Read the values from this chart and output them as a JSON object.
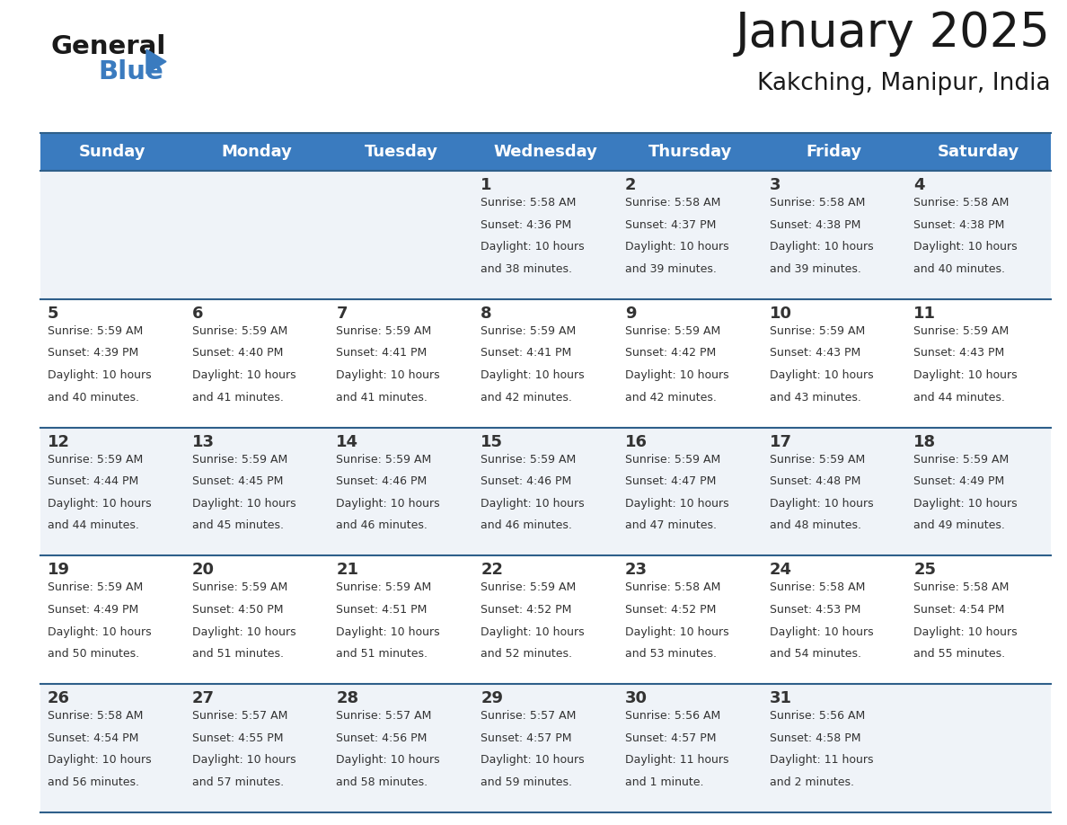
{
  "title": "January 2025",
  "subtitle": "Kakching, Manipur, India",
  "header_bg_color": "#3a7bbf",
  "header_text_color": "#ffffff",
  "day_names": [
    "Sunday",
    "Monday",
    "Tuesday",
    "Wednesday",
    "Thursday",
    "Friday",
    "Saturday"
  ],
  "row_bg_even": "#eff3f8",
  "row_bg_odd": "#ffffff",
  "separator_color": "#2e5f8a",
  "background_color": "#ffffff",
  "text_color": "#333333",
  "days": [
    {
      "day": 1,
      "col": 3,
      "row": 0,
      "sunrise": "5:58 AM",
      "sunset": "4:36 PM",
      "daylight_line1": "Daylight: 10 hours",
      "daylight_line2": "and 38 minutes."
    },
    {
      "day": 2,
      "col": 4,
      "row": 0,
      "sunrise": "5:58 AM",
      "sunset": "4:37 PM",
      "daylight_line1": "Daylight: 10 hours",
      "daylight_line2": "and 39 minutes."
    },
    {
      "day": 3,
      "col": 5,
      "row": 0,
      "sunrise": "5:58 AM",
      "sunset": "4:38 PM",
      "daylight_line1": "Daylight: 10 hours",
      "daylight_line2": "and 39 minutes."
    },
    {
      "day": 4,
      "col": 6,
      "row": 0,
      "sunrise": "5:58 AM",
      "sunset": "4:38 PM",
      "daylight_line1": "Daylight: 10 hours",
      "daylight_line2": "and 40 minutes."
    },
    {
      "day": 5,
      "col": 0,
      "row": 1,
      "sunrise": "5:59 AM",
      "sunset": "4:39 PM",
      "daylight_line1": "Daylight: 10 hours",
      "daylight_line2": "and 40 minutes."
    },
    {
      "day": 6,
      "col": 1,
      "row": 1,
      "sunrise": "5:59 AM",
      "sunset": "4:40 PM",
      "daylight_line1": "Daylight: 10 hours",
      "daylight_line2": "and 41 minutes."
    },
    {
      "day": 7,
      "col": 2,
      "row": 1,
      "sunrise": "5:59 AM",
      "sunset": "4:41 PM",
      "daylight_line1": "Daylight: 10 hours",
      "daylight_line2": "and 41 minutes."
    },
    {
      "day": 8,
      "col": 3,
      "row": 1,
      "sunrise": "5:59 AM",
      "sunset": "4:41 PM",
      "daylight_line1": "Daylight: 10 hours",
      "daylight_line2": "and 42 minutes."
    },
    {
      "day": 9,
      "col": 4,
      "row": 1,
      "sunrise": "5:59 AM",
      "sunset": "4:42 PM",
      "daylight_line1": "Daylight: 10 hours",
      "daylight_line2": "and 42 minutes."
    },
    {
      "day": 10,
      "col": 5,
      "row": 1,
      "sunrise": "5:59 AM",
      "sunset": "4:43 PM",
      "daylight_line1": "Daylight: 10 hours",
      "daylight_line2": "and 43 minutes."
    },
    {
      "day": 11,
      "col": 6,
      "row": 1,
      "sunrise": "5:59 AM",
      "sunset": "4:43 PM",
      "daylight_line1": "Daylight: 10 hours",
      "daylight_line2": "and 44 minutes."
    },
    {
      "day": 12,
      "col": 0,
      "row": 2,
      "sunrise": "5:59 AM",
      "sunset": "4:44 PM",
      "daylight_line1": "Daylight: 10 hours",
      "daylight_line2": "and 44 minutes."
    },
    {
      "day": 13,
      "col": 1,
      "row": 2,
      "sunrise": "5:59 AM",
      "sunset": "4:45 PM",
      "daylight_line1": "Daylight: 10 hours",
      "daylight_line2": "and 45 minutes."
    },
    {
      "day": 14,
      "col": 2,
      "row": 2,
      "sunrise": "5:59 AM",
      "sunset": "4:46 PM",
      "daylight_line1": "Daylight: 10 hours",
      "daylight_line2": "and 46 minutes."
    },
    {
      "day": 15,
      "col": 3,
      "row": 2,
      "sunrise": "5:59 AM",
      "sunset": "4:46 PM",
      "daylight_line1": "Daylight: 10 hours",
      "daylight_line2": "and 46 minutes."
    },
    {
      "day": 16,
      "col": 4,
      "row": 2,
      "sunrise": "5:59 AM",
      "sunset": "4:47 PM",
      "daylight_line1": "Daylight: 10 hours",
      "daylight_line2": "and 47 minutes."
    },
    {
      "day": 17,
      "col": 5,
      "row": 2,
      "sunrise": "5:59 AM",
      "sunset": "4:48 PM",
      "daylight_line1": "Daylight: 10 hours",
      "daylight_line2": "and 48 minutes."
    },
    {
      "day": 18,
      "col": 6,
      "row": 2,
      "sunrise": "5:59 AM",
      "sunset": "4:49 PM",
      "daylight_line1": "Daylight: 10 hours",
      "daylight_line2": "and 49 minutes."
    },
    {
      "day": 19,
      "col": 0,
      "row": 3,
      "sunrise": "5:59 AM",
      "sunset": "4:49 PM",
      "daylight_line1": "Daylight: 10 hours",
      "daylight_line2": "and 50 minutes."
    },
    {
      "day": 20,
      "col": 1,
      "row": 3,
      "sunrise": "5:59 AM",
      "sunset": "4:50 PM",
      "daylight_line1": "Daylight: 10 hours",
      "daylight_line2": "and 51 minutes."
    },
    {
      "day": 21,
      "col": 2,
      "row": 3,
      "sunrise": "5:59 AM",
      "sunset": "4:51 PM",
      "daylight_line1": "Daylight: 10 hours",
      "daylight_line2": "and 51 minutes."
    },
    {
      "day": 22,
      "col": 3,
      "row": 3,
      "sunrise": "5:59 AM",
      "sunset": "4:52 PM",
      "daylight_line1": "Daylight: 10 hours",
      "daylight_line2": "and 52 minutes."
    },
    {
      "day": 23,
      "col": 4,
      "row": 3,
      "sunrise": "5:58 AM",
      "sunset": "4:52 PM",
      "daylight_line1": "Daylight: 10 hours",
      "daylight_line2": "and 53 minutes."
    },
    {
      "day": 24,
      "col": 5,
      "row": 3,
      "sunrise": "5:58 AM",
      "sunset": "4:53 PM",
      "daylight_line1": "Daylight: 10 hours",
      "daylight_line2": "and 54 minutes."
    },
    {
      "day": 25,
      "col": 6,
      "row": 3,
      "sunrise": "5:58 AM",
      "sunset": "4:54 PM",
      "daylight_line1": "Daylight: 10 hours",
      "daylight_line2": "and 55 minutes."
    },
    {
      "day": 26,
      "col": 0,
      "row": 4,
      "sunrise": "5:58 AM",
      "sunset": "4:54 PM",
      "daylight_line1": "Daylight: 10 hours",
      "daylight_line2": "and 56 minutes."
    },
    {
      "day": 27,
      "col": 1,
      "row": 4,
      "sunrise": "5:57 AM",
      "sunset": "4:55 PM",
      "daylight_line1": "Daylight: 10 hours",
      "daylight_line2": "and 57 minutes."
    },
    {
      "day": 28,
      "col": 2,
      "row": 4,
      "sunrise": "5:57 AM",
      "sunset": "4:56 PM",
      "daylight_line1": "Daylight: 10 hours",
      "daylight_line2": "and 58 minutes."
    },
    {
      "day": 29,
      "col": 3,
      "row": 4,
      "sunrise": "5:57 AM",
      "sunset": "4:57 PM",
      "daylight_line1": "Daylight: 10 hours",
      "daylight_line2": "and 59 minutes."
    },
    {
      "day": 30,
      "col": 4,
      "row": 4,
      "sunrise": "5:56 AM",
      "sunset": "4:57 PM",
      "daylight_line1": "Daylight: 11 hours",
      "daylight_line2": "and 1 minute."
    },
    {
      "day": 31,
      "col": 5,
      "row": 4,
      "sunrise": "5:56 AM",
      "sunset": "4:58 PM",
      "daylight_line1": "Daylight: 11 hours",
      "daylight_line2": "and 2 minutes."
    }
  ],
  "num_rows": 5,
  "num_cols": 7,
  "logo_general_color": "#1a1a1a",
  "logo_blue_color": "#3a7bbf",
  "logo_triangle_color": "#3a7bbf",
  "title_fontsize": 38,
  "subtitle_fontsize": 19,
  "day_header_fontsize": 13,
  "day_num_fontsize": 13,
  "cell_text_fontsize": 9
}
